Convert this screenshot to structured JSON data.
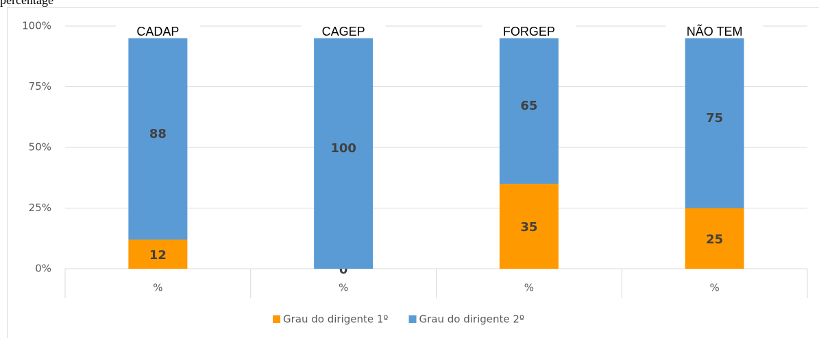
{
  "chart_data": {
    "type": "stacked_bar",
    "title": "percentage",
    "group_labels": [
      "CADAP",
      "CAGEP",
      "FORGEP",
      "NÃO TEM"
    ],
    "categories": [
      "%",
      "%",
      "%",
      "%"
    ],
    "series": [
      {
        "name": "Grau do dirigente 1º",
        "color": "#ff9900",
        "values": [
          12,
          0,
          35,
          25
        ]
      },
      {
        "name": "Grau do dirigente 2º",
        "color": "#5b9bd5",
        "values": [
          88,
          100,
          65,
          75
        ]
      }
    ],
    "ylim": [
      0,
      100
    ],
    "yticks": [
      {
        "value": 0,
        "label": "0%"
      },
      {
        "value": 25,
        "label": "25%"
      },
      {
        "value": 50,
        "label": "50%"
      },
      {
        "value": 75,
        "label": "75%"
      },
      {
        "value": 100,
        "label": "100%"
      }
    ],
    "grid": true,
    "legend": "bottom"
  }
}
